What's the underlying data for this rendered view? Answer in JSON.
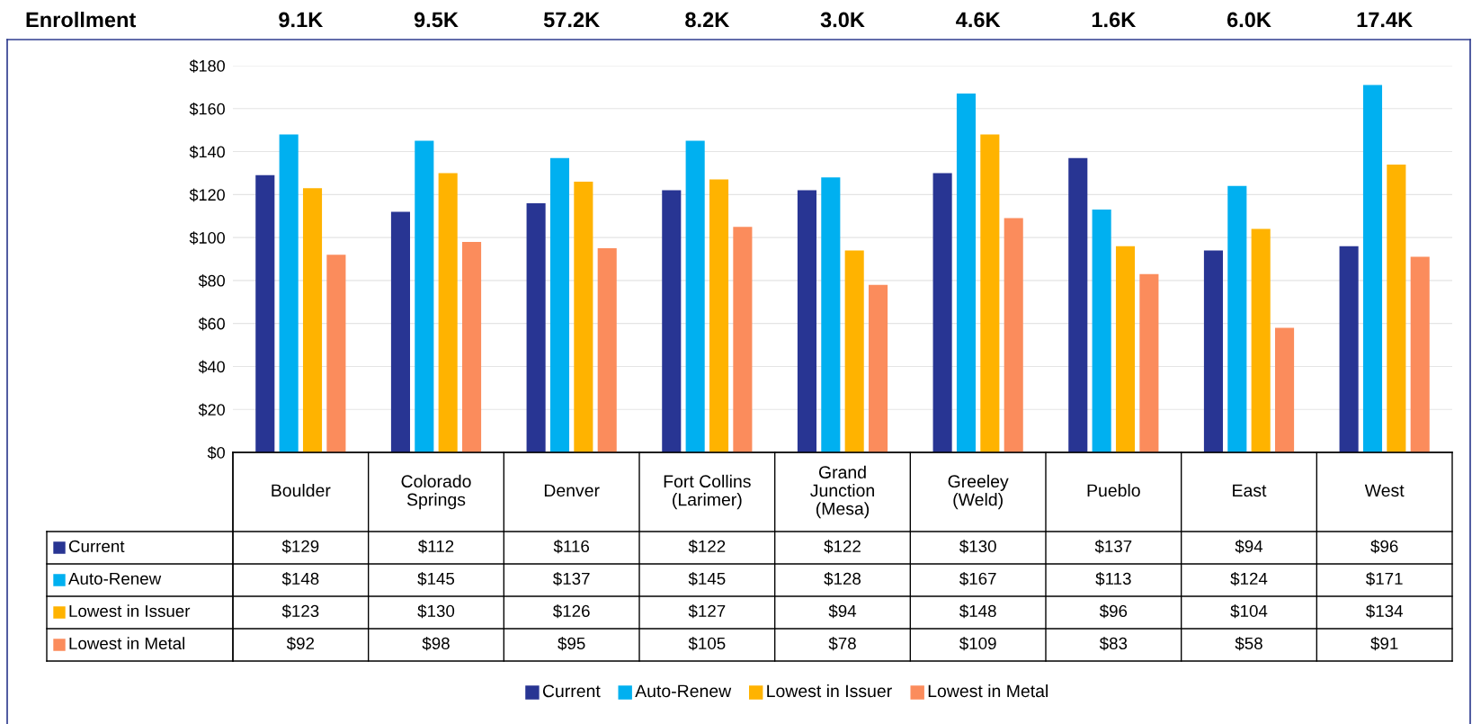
{
  "chart_data": {
    "type": "bar",
    "categories": [
      "Boulder",
      "Colorado\nSprings",
      "Denver",
      "Fort Collins\n(Larimer)",
      "Grand\nJunction\n(Mesa)",
      "Greeley\n(Weld)",
      "Pueblo",
      "East",
      "West"
    ],
    "series": [
      {
        "name": "Current",
        "color": "#283593",
        "values": [
          129,
          112,
          116,
          122,
          122,
          130,
          137,
          94,
          96
        ],
        "value_labels": [
          "$129",
          "$112",
          "$116",
          "$122",
          "$122",
          "$130",
          "$137",
          "$94",
          "$96"
        ]
      },
      {
        "name": "Auto-Renew",
        "color": "#00b0f0",
        "values": [
          148,
          145,
          137,
          145,
          128,
          167,
          113,
          124,
          171
        ],
        "value_labels": [
          "$148",
          "$145",
          "$137",
          "$145",
          "$128",
          "$167",
          "$113",
          "$124",
          "$171"
        ]
      },
      {
        "name": "Lowest in Issuer",
        "color": "#ffb300",
        "values": [
          123,
          130,
          126,
          127,
          94,
          148,
          96,
          104,
          134
        ],
        "value_labels": [
          "$123",
          "$130",
          "$126",
          "$127",
          "$94",
          "$148",
          "$96",
          "$104",
          "$134"
        ]
      },
      {
        "name": "Lowest in Metal",
        "color": "#fb8c5c",
        "values": [
          92,
          98,
          95,
          105,
          78,
          109,
          83,
          58,
          91
        ],
        "value_labels": [
          "$92",
          "$98",
          "$95",
          "$105",
          "$78",
          "$109",
          "$83",
          "$58",
          "$91"
        ]
      }
    ],
    "ylim": [
      0,
      180
    ],
    "yticks": [
      {
        "value": 0,
        "label": "$0"
      },
      {
        "value": 20,
        "label": "$20"
      },
      {
        "value": 40,
        "label": "$40"
      },
      {
        "value": 60,
        "label": "$60"
      },
      {
        "value": 80,
        "label": "$80"
      },
      {
        "value": 100,
        "label": "$100"
      },
      {
        "value": 120,
        "label": "$120"
      },
      {
        "value": 140,
        "label": "$140"
      },
      {
        "value": 160,
        "label": "$160"
      },
      {
        "value": 180,
        "label": "$180"
      }
    ],
    "grid": "y",
    "legend": "bottom",
    "annotations": [
      "Enrollment",
      "9.1K",
      "9.5K",
      "57.2K",
      "8.2K",
      "3.0K",
      "4.6K",
      "1.6K",
      "6.0K",
      "17.4K"
    ]
  }
}
